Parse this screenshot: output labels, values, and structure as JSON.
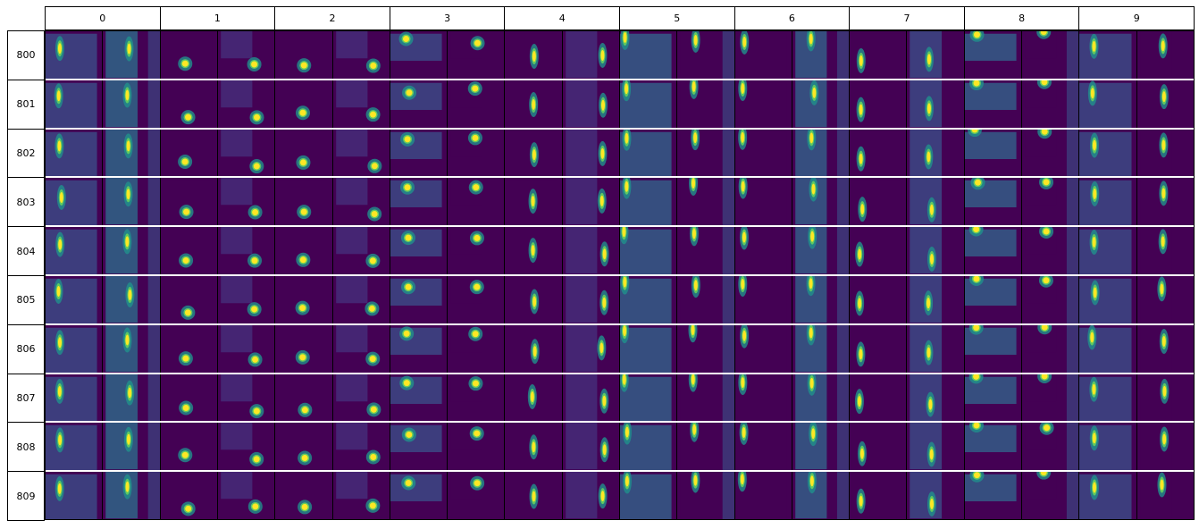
{
  "column_headers": [
    "0",
    "1",
    "2",
    "3",
    "4",
    "5",
    "6",
    "7",
    "8",
    "9"
  ],
  "row_labels": [
    "800",
    "801",
    "802",
    "803",
    "804",
    "805",
    "806",
    "807",
    "808",
    "809"
  ],
  "colors": {
    "background_dark": "#440154",
    "mid_teal": "#21918c",
    "bright_yellow": "#fde725",
    "blue_mid": "#3b528b",
    "green_light": "#5ec962"
  },
  "grid_description_cells": "each cell shows a pair of viridis-colored image panels"
}
